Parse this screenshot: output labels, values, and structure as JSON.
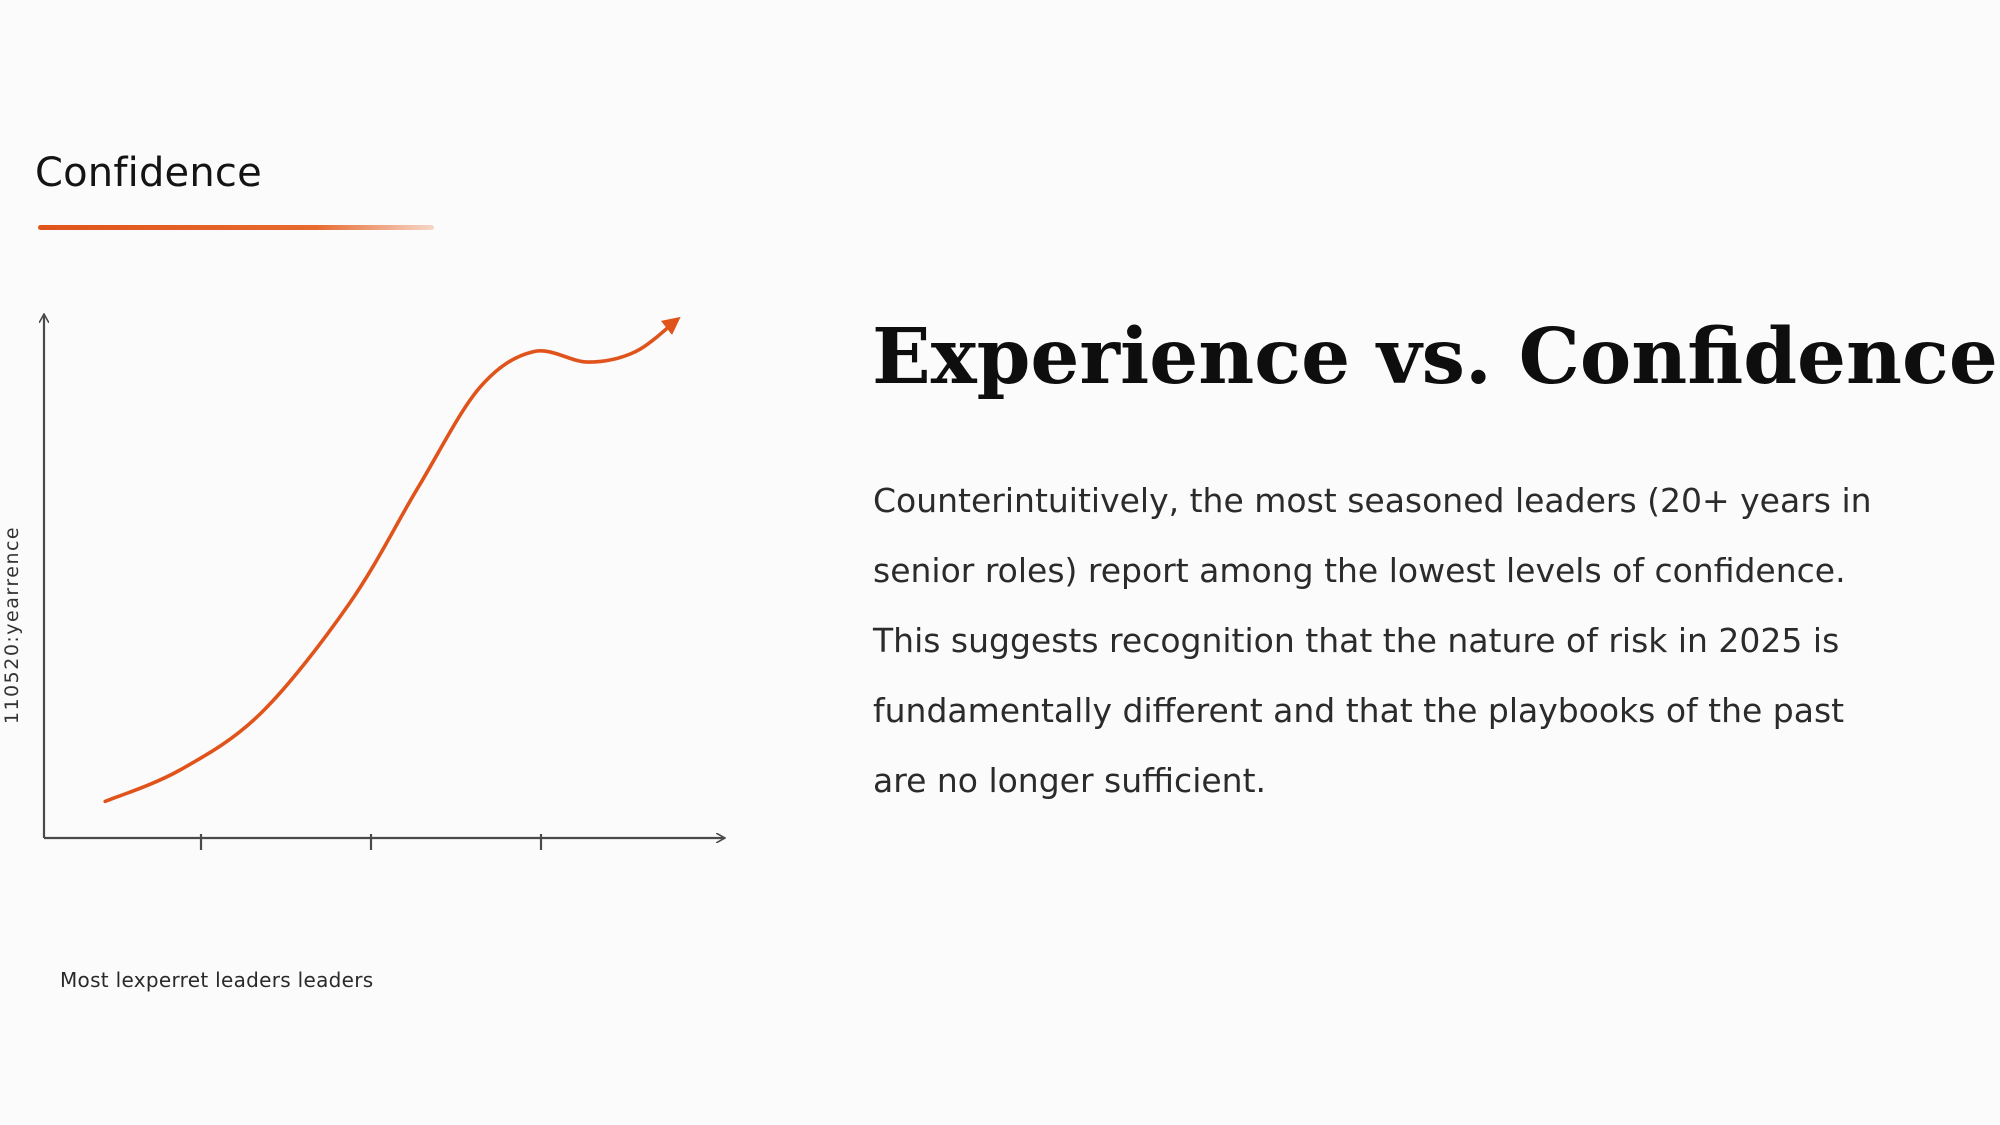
{
  "slide": {
    "chart_heading": "Confidence",
    "y_axis_label": "110520:yearrence",
    "x_axis_caption": "Most lexperret leaders leaders",
    "title": "Experience vs. Confidence",
    "body": "Counterintuitively, the most seasoned leaders (20+ years in senior roles) report among the lowest levels of confidence. This suggests recognition that the nature of risk in 2025 is fundamentally different and that the playbooks of the past are no longer sufficient."
  },
  "colors": {
    "accent": "#e0541c",
    "axis": "#4a4a4a",
    "background": "#fbfbfc",
    "title": "#0e0e0e",
    "body": "#2b2b2b"
  },
  "chart_data": {
    "type": "line",
    "title": "Confidence",
    "xlabel": "Most lexperret leaders leaders",
    "ylabel": "110520:yearrence",
    "x_ticks_unlabeled": 3,
    "grid": false,
    "legend": "none",
    "xlim": [
      0,
      1
    ],
    "ylim": [
      0,
      1
    ],
    "series": [
      {
        "color": "#e0541c",
        "arrow_end": true,
        "points": [
          [
            0.09,
            0.07
          ],
          [
            0.2,
            0.13
          ],
          [
            0.32,
            0.24
          ],
          [
            0.45,
            0.45
          ],
          [
            0.55,
            0.67
          ],
          [
            0.64,
            0.86
          ],
          [
            0.72,
            0.93
          ],
          [
            0.8,
            0.91
          ],
          [
            0.87,
            0.93
          ],
          [
            0.93,
            0.99
          ]
        ]
      }
    ]
  }
}
